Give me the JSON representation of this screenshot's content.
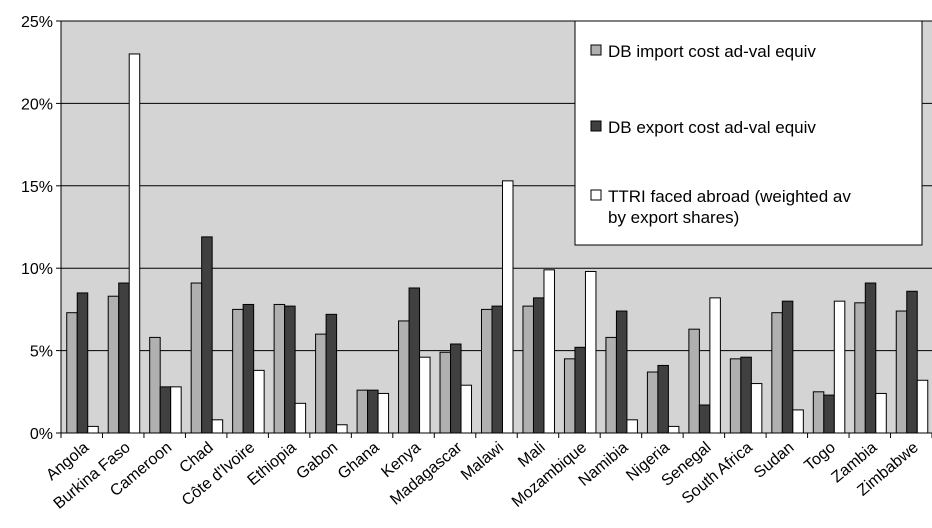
{
  "chart_data": {
    "type": "bar",
    "categories": [
      "Angola",
      "Burkina Faso",
      "Cameroon",
      "Chad",
      "Côte d'Ivoire",
      "Ethiopia",
      "Gabon",
      "Ghana",
      "Kenya",
      "Madagascar",
      "Malawi",
      "Mali",
      "Mozambique",
      "Namibia",
      "Nigeria",
      "Senegal",
      "South Africa",
      "Sudan",
      "Togo",
      "Zambia",
      "Zimbabwe"
    ],
    "series": [
      {
        "name": "DB import cost ad-val equiv",
        "color": "#b0b0b0",
        "values": [
          7.3,
          8.3,
          5.8,
          9.1,
          7.5,
          7.8,
          6.0,
          2.6,
          6.8,
          4.9,
          7.5,
          7.7,
          4.5,
          5.8,
          3.7,
          6.3,
          4.5,
          7.3,
          2.5,
          7.9,
          7.4
        ]
      },
      {
        "name": "DB export cost ad-val equiv",
        "color": "#404040",
        "values": [
          8.5,
          9.1,
          2.8,
          11.9,
          7.8,
          7.7,
          7.2,
          2.6,
          8.8,
          5.4,
          7.7,
          8.2,
          5.2,
          7.4,
          4.1,
          1.7,
          4.6,
          8.0,
          2.3,
          9.1,
          8.6
        ]
      },
      {
        "name": "TTRI faced abroad (weighted av by export shares)",
        "color": "#ffffff",
        "values": [
          0.4,
          23.0,
          2.8,
          0.8,
          3.8,
          1.8,
          0.5,
          2.4,
          4.6,
          2.9,
          15.3,
          9.9,
          9.8,
          0.8,
          0.4,
          8.2,
          3.0,
          1.4,
          8.0,
          2.4,
          3.2
        ]
      }
    ],
    "yticks": [
      "0%",
      "5%",
      "10%",
      "15%",
      "20%",
      "25%"
    ],
    "ylim": [
      0,
      25
    ],
    "grid": true,
    "legend_position": "top-right",
    "plot_background": "#d4d4d4"
  }
}
